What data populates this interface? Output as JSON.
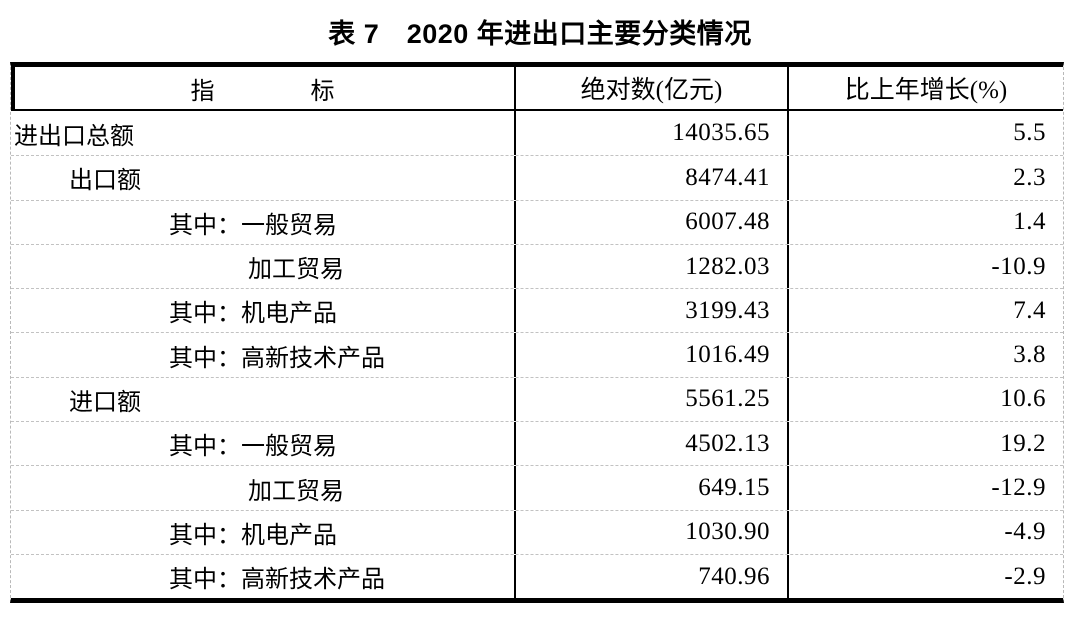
{
  "title": "表 7　2020 年进出口主要分类情况",
  "accent_colors": {
    "text": "#000000",
    "thick_rule": "#000000",
    "dashed_rule": "#c2c2c2",
    "background": "#ffffff"
  },
  "table": {
    "headers": {
      "indicator": "指　　　　标",
      "absolute": "绝对数(亿元)",
      "growth": "比上年增长(%)"
    },
    "rows": [
      {
        "indicator": "进出口总额",
        "indent": 0,
        "absolute": "14035.65",
        "growth": "5.5"
      },
      {
        "indicator": "出口额",
        "indent": 1,
        "absolute": "8474.41",
        "growth": "2.3"
      },
      {
        "indicator": "其中：一般贸易",
        "indent": 2,
        "absolute": "6007.48",
        "growth": "1.4"
      },
      {
        "indicator": "加工贸易",
        "indent": 3,
        "absolute": "1282.03",
        "growth": "-10.9"
      },
      {
        "indicator": "其中：机电产品",
        "indent": 2,
        "absolute": "3199.43",
        "growth": "7.4"
      },
      {
        "indicator": "其中：高新技术产品",
        "indent": 2,
        "absolute": "1016.49",
        "growth": "3.8"
      },
      {
        "indicator": "进口额",
        "indent": 1,
        "absolute": "5561.25",
        "growth": "10.6"
      },
      {
        "indicator": "其中：一般贸易",
        "indent": 2,
        "absolute": "4502.13",
        "growth": "19.2"
      },
      {
        "indicator": "加工贸易",
        "indent": 3,
        "absolute": "649.15",
        "growth": "-12.9"
      },
      {
        "indicator": "其中：机电产品",
        "indent": 2,
        "absolute": "1030.90",
        "growth": "-4.9"
      },
      {
        "indicator": "其中：高新技术产品",
        "indent": 2,
        "absolute": "740.96",
        "growth": "-2.9"
      }
    ]
  },
  "chart_data": {
    "type": "table",
    "title": "表 7　2020 年进出口主要分类情况",
    "columns": [
      "指标",
      "绝对数(亿元)",
      "比上年增长(%)"
    ],
    "rows": [
      [
        "进出口总额",
        14035.65,
        5.5
      ],
      [
        "出口额",
        8474.41,
        2.3
      ],
      [
        "其中：一般贸易",
        6007.48,
        1.4
      ],
      [
        "加工贸易",
        1282.03,
        -10.9
      ],
      [
        "其中：机电产品",
        3199.43,
        7.4
      ],
      [
        "其中：高新技术产品",
        1016.49,
        3.8
      ],
      [
        "进口额",
        5561.25,
        10.6
      ],
      [
        "其中：一般贸易",
        4502.13,
        19.2
      ],
      [
        "加工贸易",
        649.15,
        -12.9
      ],
      [
        "其中：机电产品",
        1030.9,
        -4.9
      ],
      [
        "其中：高新技术产品",
        740.96,
        -2.9
      ]
    ]
  }
}
